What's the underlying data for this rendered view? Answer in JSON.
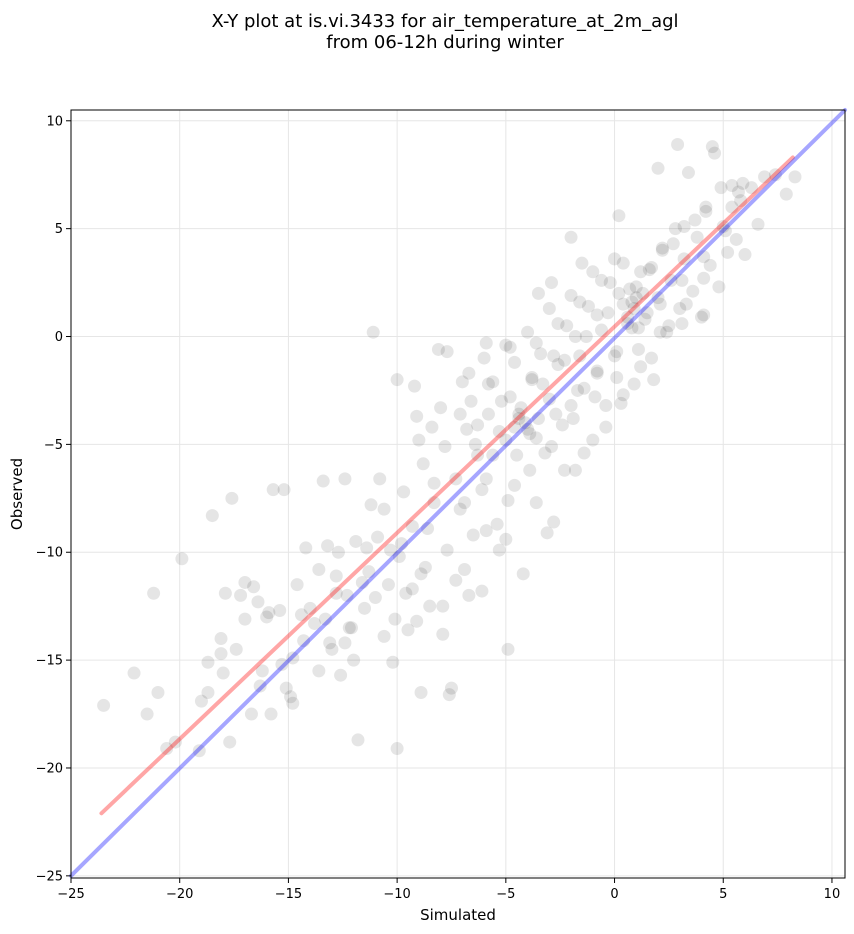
{
  "chart_data": {
    "type": "scatter",
    "title_lines": [
      "X-Y plot at is.vi.3433 for air_temperature_at_2m_agl",
      "from 06-12h during winter"
    ],
    "xlabel": "Simulated",
    "ylabel": "Observed",
    "xlim": [
      -25,
      10.6
    ],
    "ylim": [
      -25.1,
      10.5
    ],
    "xticks": [
      -25,
      -20,
      -15,
      -10,
      -5,
      0,
      5,
      10
    ],
    "yticks": [
      -25,
      -20,
      -15,
      -10,
      -5,
      0,
      5,
      10
    ],
    "grid": true,
    "point_color": "#000000",
    "point_alpha": 0.1,
    "points": [
      [
        -23.5,
        -17.1
      ],
      [
        -22.1,
        -15.6
      ],
      [
        -21.5,
        -17.5
      ],
      [
        -21.2,
        -11.9
      ],
      [
        -21.0,
        -16.5
      ],
      [
        -20.6,
        -19.1
      ],
      [
        -20.2,
        -18.8
      ],
      [
        -19.9,
        -10.3
      ],
      [
        -19.1,
        -19.2
      ],
      [
        -18.7,
        -16.5
      ],
      [
        -18.7,
        -15.1
      ],
      [
        -18.5,
        -8.3
      ],
      [
        -18.1,
        -14.0
      ],
      [
        -18.0,
        -15.6
      ],
      [
        -17.9,
        -11.9
      ],
      [
        -17.7,
        -18.8
      ],
      [
        -17.6,
        -7.5
      ],
      [
        -17.4,
        -14.5
      ],
      [
        -17.2,
        -12.0
      ],
      [
        -17.0,
        -11.4
      ],
      [
        -16.7,
        -17.5
      ],
      [
        -16.6,
        -11.6
      ],
      [
        -16.4,
        -12.3
      ],
      [
        -16.2,
        -15.5
      ],
      [
        -16.0,
        -13.0
      ],
      [
        -15.8,
        -17.5
      ],
      [
        -15.7,
        -7.1
      ],
      [
        -15.4,
        -12.7
      ],
      [
        -15.2,
        -7.1
      ],
      [
        -15.1,
        -16.3
      ],
      [
        -14.8,
        -17.0
      ],
      [
        -14.6,
        -11.5
      ],
      [
        -14.4,
        -12.9
      ],
      [
        -14.2,
        -9.8
      ],
      [
        -14.0,
        -12.6
      ],
      [
        -13.8,
        -13.3
      ],
      [
        -13.6,
        -10.8
      ],
      [
        -13.4,
        -6.7
      ],
      [
        -13.2,
        -9.7
      ],
      [
        -13.0,
        -14.5
      ],
      [
        -12.8,
        -11.9
      ],
      [
        -12.6,
        -15.7
      ],
      [
        -12.4,
        -6.6
      ],
      [
        -12.2,
        -13.5
      ],
      [
        -12.0,
        -15.0
      ],
      [
        -11.8,
        -18.7
      ],
      [
        -11.6,
        -11.4
      ],
      [
        -11.4,
        -9.8
      ],
      [
        -11.2,
        -7.8
      ],
      [
        -11.0,
        -12.1
      ],
      [
        -10.8,
        -6.6
      ],
      [
        -10.6,
        -13.9
      ],
      [
        -10.4,
        -11.5
      ],
      [
        -10.2,
        -15.1
      ],
      [
        -10.0,
        -2.0
      ],
      [
        -9.8,
        -9.6
      ],
      [
        -9.7,
        -7.2
      ],
      [
        -9.5,
        -13.6
      ],
      [
        -9.3,
        -11.7
      ],
      [
        -9.1,
        -3.7
      ],
      [
        -8.9,
        -16.5
      ],
      [
        -8.7,
        -10.7
      ],
      [
        -8.5,
        -12.5
      ],
      [
        -8.3,
        -6.8
      ],
      [
        -8.1,
        -0.6
      ],
      [
        -7.9,
        -13.8
      ],
      [
        -7.7,
        -9.9
      ],
      [
        -7.5,
        -16.3
      ],
      [
        -7.3,
        -11.3
      ],
      [
        -7.1,
        -3.6
      ],
      [
        -6.9,
        -7.7
      ],
      [
        -6.7,
        -1.7
      ],
      [
        -6.5,
        -9.2
      ],
      [
        -6.3,
        -4.1
      ],
      [
        -6.1,
        -11.8
      ],
      [
        -5.9,
        -6.6
      ],
      [
        -5.8,
        -2.2
      ],
      [
        -5.6,
        -5.5
      ],
      [
        -5.4,
        -8.7
      ],
      [
        -5.2,
        -3.0
      ],
      [
        -5.0,
        -9.4
      ],
      [
        -4.8,
        -0.5
      ],
      [
        -4.6,
        -6.9
      ],
      [
        -4.4,
        -3.8
      ],
      [
        -4.2,
        -11.0
      ],
      [
        -4.0,
        -4.3
      ],
      [
        -3.8,
        -2.0
      ],
      [
        -3.6,
        -7.7
      ],
      [
        -3.4,
        -0.8
      ],
      [
        -3.2,
        -5.4
      ],
      [
        -3.0,
        -2.9
      ],
      [
        -2.8,
        -8.6
      ],
      [
        -2.6,
        -1.3
      ],
      [
        -2.4,
        -4.1
      ],
      [
        -2.2,
        0.5
      ],
      [
        -2.0,
        -3.2
      ],
      [
        -1.8,
        -6.2
      ],
      [
        -1.6,
        -0.9
      ],
      [
        -1.4,
        -2.4
      ],
      [
        -1.2,
        1.4
      ],
      [
        -1.0,
        -4.8
      ],
      [
        -0.8,
        -1.7
      ],
      [
        -0.6,
        0.3
      ],
      [
        -0.4,
        -3.2
      ],
      [
        -0.2,
        2.5
      ],
      [
        0.0,
        -0.9
      ],
      [
        0.2,
        5.6
      ],
      [
        0.4,
        -2.7
      ],
      [
        0.6,
        0.6
      ],
      [
        0.8,
        1.6
      ],
      [
        1.0,
        2.3
      ],
      [
        1.2,
        -1.4
      ],
      [
        1.4,
        0.8
      ],
      [
        1.6,
        3.1
      ],
      [
        1.8,
        -2.0
      ],
      [
        2.0,
        1.8
      ],
      [
        2.2,
        4.1
      ],
      [
        2.4,
        0.2
      ],
      [
        2.6,
        2.6
      ],
      [
        2.8,
        5.0
      ],
      [
        3.0,
        1.3
      ],
      [
        3.2,
        3.6
      ],
      [
        3.4,
        7.6
      ],
      [
        3.6,
        2.1
      ],
      [
        3.8,
        4.6
      ],
      [
        4.0,
        0.9
      ],
      [
        4.2,
        5.8
      ],
      [
        4.4,
        3.3
      ],
      [
        4.6,
        8.5
      ],
      [
        4.8,
        2.3
      ],
      [
        5.0,
        5.1
      ],
      [
        5.2,
        3.9
      ],
      [
        5.4,
        7.0
      ],
      [
        5.6,
        4.5
      ],
      [
        5.8,
        6.3
      ],
      [
        6.0,
        3.8
      ],
      [
        6.3,
        6.9
      ],
      [
        6.6,
        5.2
      ],
      [
        6.9,
        7.4
      ],
      [
        7.4,
        7.5
      ],
      [
        7.9,
        6.6
      ],
      [
        8.3,
        7.4
      ],
      [
        2.9,
        8.9
      ],
      [
        4.5,
        8.8
      ],
      [
        2.0,
        7.8
      ],
      [
        -10.0,
        -19.1
      ],
      [
        -7.6,
        -16.6
      ],
      [
        -4.9,
        -14.5
      ],
      [
        -12.8,
        -11.1
      ],
      [
        -6.7,
        -12.0
      ],
      [
        -5.3,
        -9.9
      ],
      [
        -3.1,
        -9.1
      ],
      [
        -2.3,
        -6.2
      ],
      [
        -1.4,
        -5.4
      ],
      [
        -0.4,
        -4.2
      ],
      [
        0.3,
        -3.1
      ],
      [
        0.9,
        -2.2
      ],
      [
        1.7,
        -1.0
      ],
      [
        2.5,
        0.5
      ],
      [
        3.3,
        1.5
      ],
      [
        4.1,
        2.7
      ],
      [
        -9.0,
        -4.8
      ],
      [
        -8.0,
        -3.3
      ],
      [
        -7.0,
        -2.1
      ],
      [
        -6.0,
        -1.0
      ],
      [
        -5.0,
        -0.4
      ],
      [
        -4.0,
        0.2
      ],
      [
        -3.0,
        1.3
      ],
      [
        -2.0,
        1.9
      ],
      [
        -1.0,
        3.0
      ],
      [
        0.0,
        3.6
      ],
      [
        -11.1,
        0.2
      ],
      [
        -9.2,
        -2.3
      ],
      [
        -8.4,
        -4.2
      ],
      [
        -6.4,
        -5.0
      ],
      [
        -4.5,
        -5.5
      ],
      [
        -3.6,
        -4.7
      ],
      [
        -2.7,
        -3.6
      ],
      [
        -1.7,
        -2.5
      ],
      [
        -0.8,
        -1.6
      ],
      [
        0.1,
        -0.7
      ],
      [
        1.1,
        0.4
      ],
      [
        2.1,
        1.5
      ],
      [
        3.1,
        2.6
      ],
      [
        4.1,
        3.7
      ],
      [
        5.1,
        4.9
      ],
      [
        5.7,
        6.7
      ],
      [
        5.4,
        6.0
      ],
      [
        5.9,
        7.1
      ],
      [
        4.9,
        6.9
      ],
      [
        3.7,
        5.4
      ],
      [
        2.7,
        4.3
      ],
      [
        1.7,
        3.2
      ],
      [
        0.7,
        2.2
      ],
      [
        -0.3,
        1.1
      ],
      [
        -1.3,
        0.0
      ],
      [
        -2.3,
        -1.1
      ],
      [
        -3.3,
        -2.2
      ],
      [
        -4.3,
        -3.3
      ],
      [
        -5.3,
        -4.4
      ],
      [
        -6.3,
        -5.5
      ],
      [
        -7.3,
        -6.6
      ],
      [
        -8.3,
        -7.7
      ],
      [
        -9.3,
        -8.8
      ],
      [
        -10.3,
        -9.9
      ],
      [
        -11.3,
        -10.9
      ],
      [
        -12.3,
        -12.0
      ],
      [
        -13.3,
        -13.1
      ],
      [
        -14.3,
        -14.1
      ],
      [
        -15.3,
        -15.2
      ],
      [
        -16.3,
        -16.2
      ],
      [
        -8.8,
        -5.9
      ],
      [
        -7.8,
        -5.1
      ],
      [
        -6.8,
        -4.3
      ],
      [
        -5.8,
        -3.6
      ],
      [
        -4.8,
        -2.8
      ],
      [
        -3.8,
        -1.9
      ],
      [
        -2.8,
        -0.9
      ],
      [
        -1.8,
        0.0
      ],
      [
        -0.8,
        1.0
      ],
      [
        0.2,
        2.0
      ],
      [
        1.2,
        3.0
      ],
      [
        2.2,
        4.0
      ],
      [
        3.2,
        5.1
      ],
      [
        4.2,
        6.0
      ],
      [
        0.9,
        1.3
      ],
      [
        1.0,
        1.8
      ],
      [
        0.6,
        0.9
      ],
      [
        1.3,
        2.0
      ],
      [
        0.4,
        1.5
      ],
      [
        0.8,
        0.4
      ],
      [
        1.5,
        1.1
      ],
      [
        -4.1,
        -4.0
      ],
      [
        -4.4,
        -3.6
      ],
      [
        -3.9,
        -4.5
      ],
      [
        -4.6,
        -4.2
      ],
      [
        -5.0,
        -4.8
      ],
      [
        -3.5,
        -3.8
      ],
      [
        -10.6,
        -8.0
      ],
      [
        -9.9,
        -10.2
      ],
      [
        -10.9,
        -9.3
      ],
      [
        -11.9,
        -9.5
      ],
      [
        -12.7,
        -10.0
      ],
      [
        -8.6,
        -8.9
      ],
      [
        -7.1,
        -8.0
      ],
      [
        -6.1,
        -7.1
      ],
      [
        -8.9,
        -11.0
      ],
      [
        -9.6,
        -11.9
      ],
      [
        -11.5,
        -12.6
      ],
      [
        -12.1,
        -13.5
      ],
      [
        -13.1,
        -14.2
      ],
      [
        -10.1,
        -13.1
      ],
      [
        -9.1,
        -13.2
      ],
      [
        -7.9,
        -12.5
      ],
      [
        -6.9,
        -10.8
      ],
      [
        -5.9,
        -9.0
      ],
      [
        -4.9,
        -7.6
      ],
      [
        -3.9,
        -6.2
      ],
      [
        -2.9,
        -5.1
      ],
      [
        -1.9,
        -3.8
      ],
      [
        -0.9,
        -2.8
      ],
      [
        0.1,
        -1.9
      ],
      [
        1.1,
        -0.6
      ],
      [
        2.1,
        0.2
      ],
      [
        3.1,
        0.6
      ],
      [
        4.1,
        1.0
      ],
      [
        -6.6,
        -3.0
      ],
      [
        -5.6,
        -2.1
      ],
      [
        -4.6,
        -1.2
      ],
      [
        -3.6,
        -0.3
      ],
      [
        -2.6,
        0.6
      ],
      [
        -1.6,
        1.6
      ],
      [
        -0.6,
        2.6
      ],
      [
        0.4,
        3.4
      ],
      [
        -2.0,
        4.6
      ],
      [
        -1.5,
        3.4
      ],
      [
        -2.9,
        2.5
      ],
      [
        -3.5,
        2.0
      ],
      [
        -7.7,
        -0.7
      ],
      [
        -5.9,
        -0.3
      ],
      [
        -14.8,
        -14.9
      ],
      [
        -15.9,
        -12.8
      ],
      [
        -17.0,
        -13.1
      ],
      [
        -18.1,
        -14.7
      ],
      [
        -19.0,
        -16.9
      ],
      [
        -13.6,
        -15.5
      ],
      [
        -14.9,
        -16.7
      ],
      [
        -12.4,
        -14.2
      ]
    ],
    "lines": [
      {
        "color": "#ff0000",
        "alpha": 0.35,
        "x": [
          -23.6,
          8.2
        ],
        "y": [
          -22.1,
          8.3
        ]
      },
      {
        "color": "#0000ff",
        "alpha": 0.35,
        "x": [
          -25.0,
          10.6
        ],
        "y": [
          -25.0,
          10.5
        ]
      }
    ]
  }
}
